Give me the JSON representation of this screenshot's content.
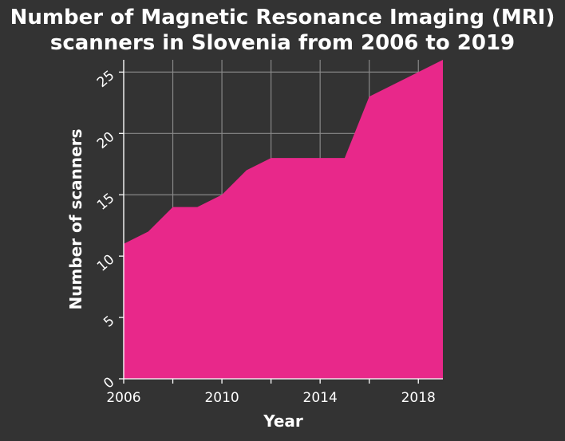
{
  "chart_data": {
    "type": "area",
    "title": [
      "Number of Magnetic Resonance Imaging (MRI)",
      "scanners in Slovenia from 2006 to 2019"
    ],
    "xlabel": "Year",
    "ylabel": "Number of scanners",
    "x": [
      2006,
      2007,
      2008,
      2009,
      2010,
      2011,
      2012,
      2013,
      2014,
      2015,
      2016,
      2017,
      2018,
      2019
    ],
    "series": [
      {
        "values": [
          11,
          12,
          14,
          14,
          15,
          17,
          18,
          18,
          18,
          18,
          23,
          24,
          25,
          26
        ]
      }
    ],
    "xlim": [
      2006,
      2019
    ],
    "ylim": [
      0,
      26
    ],
    "xticks": [
      2006,
      2008,
      2010,
      2012,
      2014,
      2016,
      2018
    ],
    "xtick_labels": [
      "2006",
      "",
      "2010",
      "",
      "2014",
      "",
      "2018"
    ],
    "yticks": [
      0,
      5,
      10,
      15,
      20,
      25
    ],
    "ytick_labels": [
      "0",
      "5",
      "10",
      "15",
      "20",
      "25"
    ],
    "grid": true,
    "colors": {
      "background": "#333333",
      "fill": "#e8288a",
      "grid": "#888888",
      "text": "#ffffff"
    }
  }
}
